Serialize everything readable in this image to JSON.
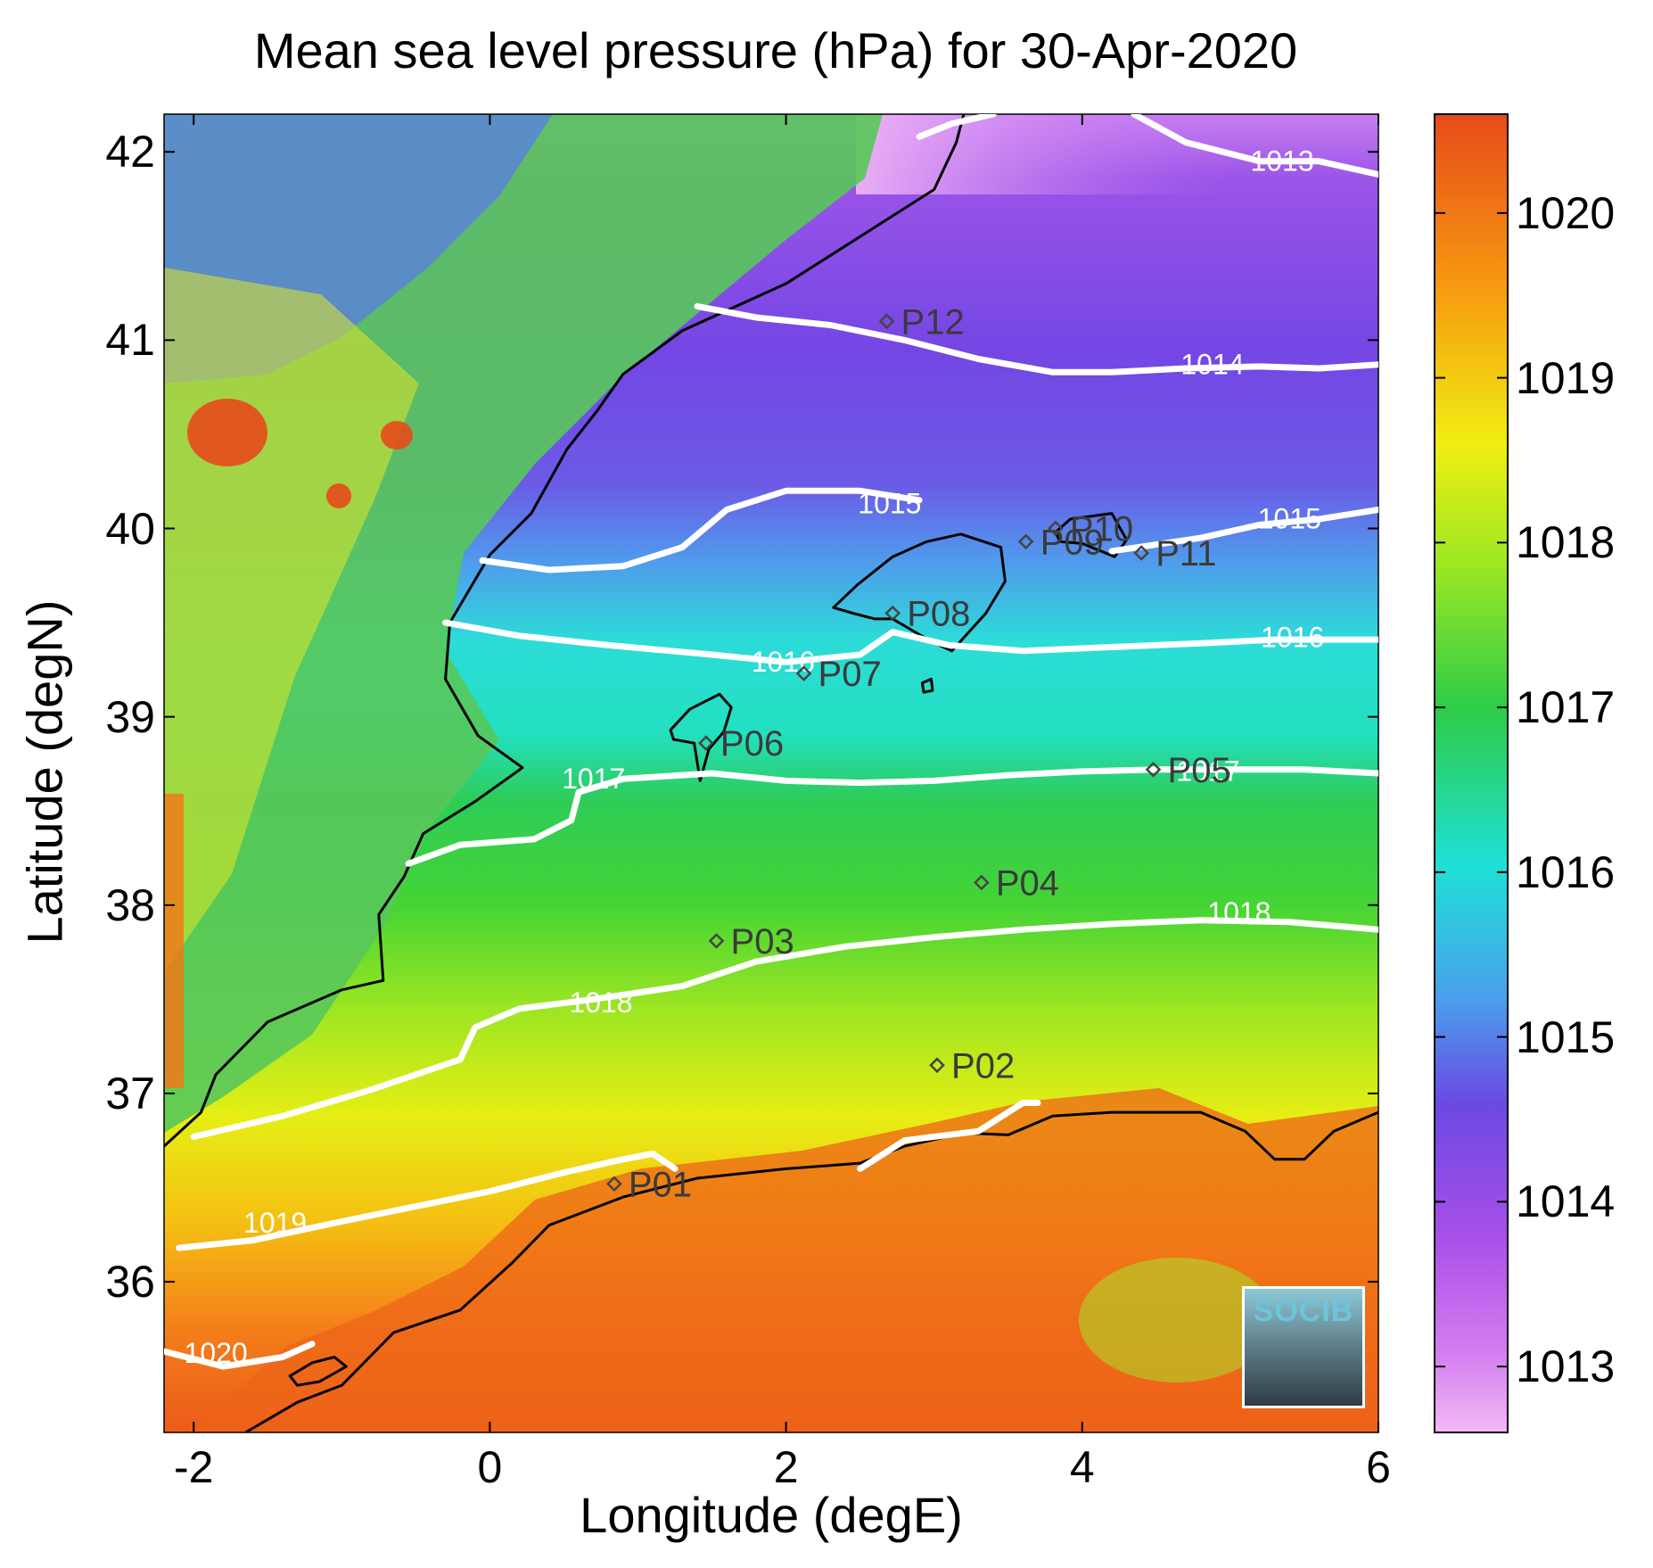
{
  "title": "Mean sea level pressure (hPa) for 30-Apr-2020",
  "xlabel": "Longitude (degE)",
  "ylabel": "Latitude (degN)",
  "x_ticks": [
    -2,
    0,
    2,
    4,
    6
  ],
  "y_ticks": [
    36,
    37,
    38,
    39,
    40,
    41,
    42
  ],
  "colorbar_ticks": [
    1013,
    1014,
    1015,
    1016,
    1017,
    1018,
    1019,
    1020
  ],
  "colorbar_range": [
    1012.6,
    1020.6
  ],
  "extent": {
    "lon": [
      -2.2,
      6.0
    ],
    "lat": [
      35.2,
      42.2
    ]
  },
  "logo_text": "SOCIB",
  "stations": [
    {
      "name": "P01",
      "lon": 0.84,
      "lat": 36.52
    },
    {
      "name": "P02",
      "lon": 3.02,
      "lat": 37.15
    },
    {
      "name": "P03",
      "lon": 1.53,
      "lat": 37.81
    },
    {
      "name": "P04",
      "lon": 3.32,
      "lat": 38.12
    },
    {
      "name": "P05",
      "lon": 4.48,
      "lat": 38.72
    },
    {
      "name": "P06",
      "lon": 1.46,
      "lat": 38.86
    },
    {
      "name": "P07",
      "lon": 2.12,
      "lat": 39.23
    },
    {
      "name": "P08",
      "lon": 2.72,
      "lat": 39.55
    },
    {
      "name": "P09",
      "lon": 3.62,
      "lat": 39.93
    },
    {
      "name": "P10",
      "lon": 3.82,
      "lat": 40.0
    },
    {
      "name": "P11",
      "lon": 4.4,
      "lat": 39.87
    },
    {
      "name": "P12",
      "lon": 2.68,
      "lat": 41.1
    }
  ],
  "contour_labels": [
    {
      "text": "1013",
      "lon": 5.35,
      "lat": 41.94
    },
    {
      "text": "1014",
      "lon": 4.88,
      "lat": 40.86
    },
    {
      "text": "1015",
      "lon": 2.7,
      "lat": 40.12
    },
    {
      "text": "1015",
      "lon": 5.4,
      "lat": 40.04
    },
    {
      "text": "1016",
      "lon": 1.98,
      "lat": 39.28
    },
    {
      "text": "1016",
      "lon": 5.42,
      "lat": 39.41
    },
    {
      "text": "1017",
      "lon": 0.7,
      "lat": 38.66
    },
    {
      "text": "1017",
      "lon": 4.85,
      "lat": 38.7
    },
    {
      "text": "1018",
      "lon": 0.75,
      "lat": 37.47
    },
    {
      "text": "1018",
      "lon": 5.06,
      "lat": 37.95
    },
    {
      "text": "1019",
      "lon": -1.45,
      "lat": 36.3
    },
    {
      "text": "1020",
      "lon": -1.85,
      "lat": 35.61
    }
  ],
  "contours": [
    {
      "level": 1013,
      "points": [
        [
          2.9,
          42.08
        ],
        [
          3.12,
          42.15
        ],
        [
          3.4,
          42.2
        ]
      ]
    },
    {
      "level": 1013,
      "points": [
        [
          4.35,
          42.2
        ],
        [
          4.7,
          42.05
        ],
        [
          5.2,
          41.95
        ],
        [
          5.6,
          41.95
        ],
        [
          6.0,
          41.88
        ]
      ]
    },
    {
      "level": 1014,
      "points": [
        [
          1.4,
          41.18
        ],
        [
          1.8,
          41.12
        ],
        [
          2.3,
          41.08
        ],
        [
          2.8,
          41.0
        ],
        [
          3.3,
          40.9
        ],
        [
          3.8,
          40.83
        ],
        [
          4.2,
          40.83
        ],
        [
          4.7,
          40.85
        ],
        [
          5.2,
          40.86
        ],
        [
          5.6,
          40.85
        ],
        [
          6.0,
          40.87
        ]
      ]
    },
    {
      "level": 1015,
      "points": [
        [
          -0.05,
          39.83
        ],
        [
          0.4,
          39.78
        ],
        [
          0.9,
          39.8
        ],
        [
          1.3,
          39.9
        ],
        [
          1.6,
          40.1
        ],
        [
          2.0,
          40.2
        ],
        [
          2.5,
          40.2
        ],
        [
          2.9,
          40.15
        ]
      ]
    },
    {
      "level": 1015,
      "points": [
        [
          4.2,
          39.88
        ],
        [
          4.8,
          39.95
        ],
        [
          5.2,
          40.02
        ],
        [
          5.6,
          40.05
        ],
        [
          6.0,
          40.1
        ]
      ]
    },
    {
      "level": 1016,
      "points": [
        [
          -0.3,
          39.5
        ],
        [
          0.2,
          39.43
        ],
        [
          0.8,
          39.38
        ],
        [
          1.5,
          39.33
        ],
        [
          2.0,
          39.29
        ],
        [
          2.5,
          39.33
        ],
        [
          2.72,
          39.45
        ],
        [
          3.1,
          39.38
        ],
        [
          3.6,
          39.35
        ],
        [
          4.2,
          39.37
        ],
        [
          4.8,
          39.39
        ],
        [
          5.3,
          39.41
        ],
        [
          6.0,
          39.41
        ]
      ]
    },
    {
      "level": 1017,
      "points": [
        [
          -0.55,
          38.22
        ],
        [
          -0.2,
          38.32
        ],
        [
          0.3,
          38.35
        ],
        [
          0.55,
          38.45
        ],
        [
          0.6,
          38.6
        ],
        [
          0.9,
          38.67
        ],
        [
          1.5,
          38.7
        ],
        [
          2.0,
          38.66
        ],
        [
          2.5,
          38.65
        ],
        [
          3.0,
          38.66
        ],
        [
          3.5,
          38.69
        ],
        [
          4.0,
          38.71
        ],
        [
          4.5,
          38.72
        ],
        [
          5.0,
          38.72
        ],
        [
          5.5,
          38.72
        ],
        [
          6.0,
          38.7
        ]
      ]
    },
    {
      "level": 1018,
      "points": [
        [
          -2.0,
          36.77
        ],
        [
          -1.4,
          36.88
        ],
        [
          -0.8,
          37.02
        ],
        [
          -0.2,
          37.18
        ],
        [
          -0.1,
          37.35
        ],
        [
          0.2,
          37.45
        ],
        [
          0.7,
          37.5
        ],
        [
          1.3,
          37.57
        ],
        [
          1.8,
          37.7
        ],
        [
          2.4,
          37.78
        ],
        [
          3.0,
          37.83
        ],
        [
          3.6,
          37.87
        ],
        [
          4.2,
          37.9
        ],
        [
          4.8,
          37.92
        ],
        [
          5.4,
          37.91
        ],
        [
          6.0,
          37.87
        ]
      ]
    },
    {
      "level": 1019,
      "points": [
        [
          -2.1,
          36.18
        ],
        [
          -1.6,
          36.22
        ],
        [
          -1.0,
          36.32
        ],
        [
          -0.5,
          36.4
        ],
        [
          0.0,
          36.48
        ],
        [
          0.5,
          36.58
        ],
        [
          0.9,
          36.65
        ],
        [
          1.1,
          36.68
        ],
        [
          1.25,
          36.6
        ]
      ]
    },
    {
      "level": 1019,
      "points": [
        [
          2.5,
          36.6
        ],
        [
          2.8,
          36.75
        ],
        [
          3.3,
          36.8
        ],
        [
          3.6,
          36.95
        ],
        [
          3.7,
          36.95
        ]
      ]
    },
    {
      "level": 1020,
      "points": [
        [
          -2.2,
          35.63
        ],
        [
          -1.8,
          35.55
        ],
        [
          -1.4,
          35.6
        ],
        [
          -1.2,
          35.67
        ]
      ]
    }
  ],
  "coastlines": [
    {
      "name": "iberia",
      "closed": false,
      "points": [
        [
          3.2,
          42.2
        ],
        [
          3.15,
          42.05
        ],
        [
          3.0,
          41.8
        ],
        [
          2.6,
          41.6
        ],
        [
          2.0,
          41.3
        ],
        [
          1.3,
          41.05
        ],
        [
          0.9,
          40.82
        ],
        [
          0.72,
          40.62
        ],
        [
          0.52,
          40.42
        ],
        [
          0.28,
          40.08
        ],
        [
          0.0,
          39.86
        ],
        [
          -0.27,
          39.5
        ],
        [
          -0.3,
          39.2
        ],
        [
          -0.08,
          38.9
        ],
        [
          0.22,
          38.73
        ],
        [
          -0.1,
          38.55
        ],
        [
          -0.45,
          38.38
        ],
        [
          -0.58,
          38.15
        ],
        [
          -0.75,
          37.95
        ],
        [
          -0.72,
          37.6
        ],
        [
          -1.0,
          37.55
        ],
        [
          -1.5,
          37.38
        ],
        [
          -1.85,
          37.1
        ],
        [
          -1.95,
          36.9
        ],
        [
          -2.2,
          36.72
        ]
      ]
    },
    {
      "name": "africa",
      "closed": false,
      "points": [
        [
          -1.65,
          35.2
        ],
        [
          -1.3,
          35.36
        ],
        [
          -1.0,
          35.45
        ],
        [
          -0.65,
          35.73
        ],
        [
          -0.2,
          35.85
        ],
        [
          0.15,
          36.1
        ],
        [
          0.4,
          36.3
        ],
        [
          0.9,
          36.45
        ],
        [
          1.4,
          36.55
        ],
        [
          2.0,
          36.6
        ],
        [
          2.5,
          36.63
        ],
        [
          2.8,
          36.72
        ],
        [
          3.2,
          36.79
        ],
        [
          3.5,
          36.78
        ],
        [
          3.8,
          36.88
        ],
        [
          4.2,
          36.9
        ],
        [
          4.8,
          36.9
        ],
        [
          5.1,
          36.8
        ],
        [
          5.3,
          36.65
        ],
        [
          5.5,
          36.65
        ],
        [
          5.7,
          36.8
        ],
        [
          6.0,
          36.9
        ]
      ]
    },
    {
      "name": "alboran",
      "closed": true,
      "points": [
        [
          -1.35,
          35.5
        ],
        [
          -1.2,
          35.57
        ],
        [
          -1.05,
          35.6
        ],
        [
          -0.97,
          35.55
        ],
        [
          -1.15,
          35.47
        ],
        [
          -1.3,
          35.45
        ]
      ]
    },
    {
      "name": "ibiza",
      "closed": true,
      "points": [
        [
          1.22,
          38.93
        ],
        [
          1.35,
          39.04
        ],
        [
          1.55,
          39.12
        ],
        [
          1.63,
          39.05
        ],
        [
          1.58,
          38.92
        ],
        [
          1.48,
          38.83
        ],
        [
          1.42,
          38.66
        ],
        [
          1.38,
          38.86
        ],
        [
          1.24,
          38.88
        ]
      ]
    },
    {
      "name": "mallorca",
      "closed": true,
      "points": [
        [
          2.32,
          39.58
        ],
        [
          2.48,
          39.7
        ],
        [
          2.72,
          39.85
        ],
        [
          2.95,
          39.93
        ],
        [
          3.18,
          39.97
        ],
        [
          3.45,
          39.9
        ],
        [
          3.48,
          39.72
        ],
        [
          3.35,
          39.55
        ],
        [
          3.12,
          39.35
        ],
        [
          2.98,
          39.4
        ],
        [
          2.72,
          39.52
        ],
        [
          2.6,
          39.52
        ],
        [
          2.45,
          39.55
        ]
      ]
    },
    {
      "name": "menorca",
      "closed": true,
      "points": [
        [
          3.82,
          39.98
        ],
        [
          3.92,
          40.05
        ],
        [
          4.2,
          40.08
        ],
        [
          4.3,
          39.94
        ],
        [
          4.22,
          39.85
        ],
        [
          4.0,
          39.92
        ],
        [
          3.85,
          39.93
        ]
      ]
    },
    {
      "name": "cabrera",
      "closed": true,
      "points": [
        [
          2.92,
          39.18
        ],
        [
          2.98,
          39.2
        ],
        [
          2.99,
          39.14
        ],
        [
          2.93,
          39.13
        ]
      ]
    }
  ]
}
